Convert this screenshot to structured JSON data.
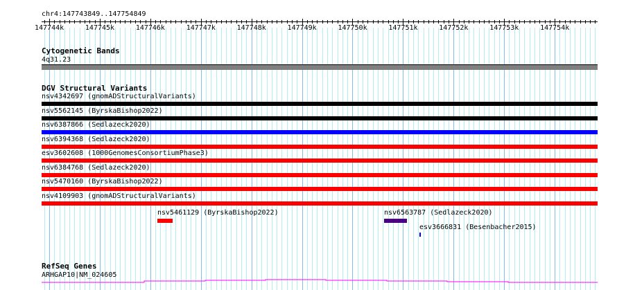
{
  "ruler": {
    "location": "chr4:147743849..147754849",
    "start": 147743849,
    "end": 147754849,
    "tick_labels": [
      "147744k",
      "147745k",
      "147746k",
      "147747k",
      "147748k",
      "147749k",
      "147750k",
      "147751k",
      "147752k",
      "147753k",
      "147754k"
    ]
  },
  "tracks": {
    "cyto": {
      "title": "Cytogenetic Bands",
      "band": "4q31.23",
      "color": "#808080"
    },
    "dgv": {
      "title": "DGV Structural Variants",
      "full": [
        {
          "label": "nsv4342697 (gnomADStructuralVariants)",
          "color": "#000000"
        },
        {
          "label": "nsv5562145 (ByrskaBishop2022)",
          "color": "#000000"
        },
        {
          "label": "nsv6387866 (Sedlazeck2020)",
          "color": "#0000ff"
        },
        {
          "label": "nsv6394368 (Sedlazeck2020)",
          "color": "#ff0000"
        },
        {
          "label": "esv3602608 (1000GenomesConsortiumPhase3)",
          "color": "#ff0000"
        },
        {
          "label": "nsv6384768 (Sedlazeck2020)",
          "color": "#ff0000"
        },
        {
          "label": "nsv5470160 (ByrskaBishop2022)",
          "color": "#ff0000"
        },
        {
          "label": "nsv4109903 (gnomADStructuralVariants)",
          "color": "#ff0000"
        }
      ],
      "small": [
        {
          "label": "nsv5461129 (ByrskaBishop2022)",
          "color": "#ff0000"
        },
        {
          "label": "nsv6563787 (Sedlazeck2020)",
          "color": "#4b0082"
        },
        {
          "label": "esv3666831 (Besenbacher2015)",
          "color": "#0000ff"
        }
      ]
    },
    "refseq": {
      "title": "RefSeq Genes",
      "gene": "ARHGAP10|NM_024605",
      "color": "#ff00ff"
    }
  }
}
